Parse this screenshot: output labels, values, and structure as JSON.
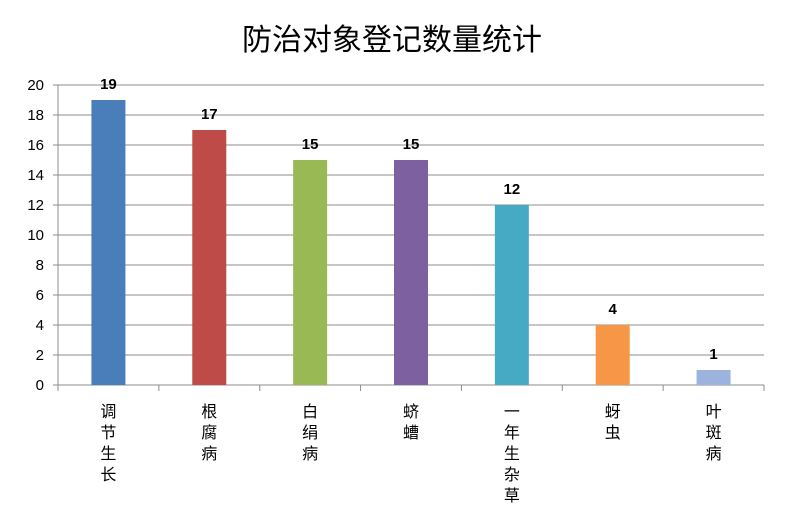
{
  "chart_data": {
    "type": "bar",
    "title": "防治对象登记数量统计",
    "xlabel": "",
    "ylabel": "",
    "ylim": [
      0,
      20
    ],
    "yticks": [
      0,
      2,
      4,
      6,
      8,
      10,
      12,
      14,
      16,
      18,
      20
    ],
    "grid": true,
    "legend": "none",
    "categories": [
      "调节生长",
      "根腐病",
      "白绢病",
      "蛴螬",
      "一年生杂草",
      "蚜虫",
      "叶斑病"
    ],
    "values": [
      19,
      17,
      15,
      15,
      12,
      4,
      1
    ],
    "data_labels": [
      "19",
      "17",
      "15",
      "15",
      "12",
      "4",
      "1"
    ],
    "colors": [
      "#4a7ebb",
      "#be4b48",
      "#98b954",
      "#7d60a0",
      "#46aac5",
      "#f79646",
      "#9bb3dd"
    ]
  }
}
